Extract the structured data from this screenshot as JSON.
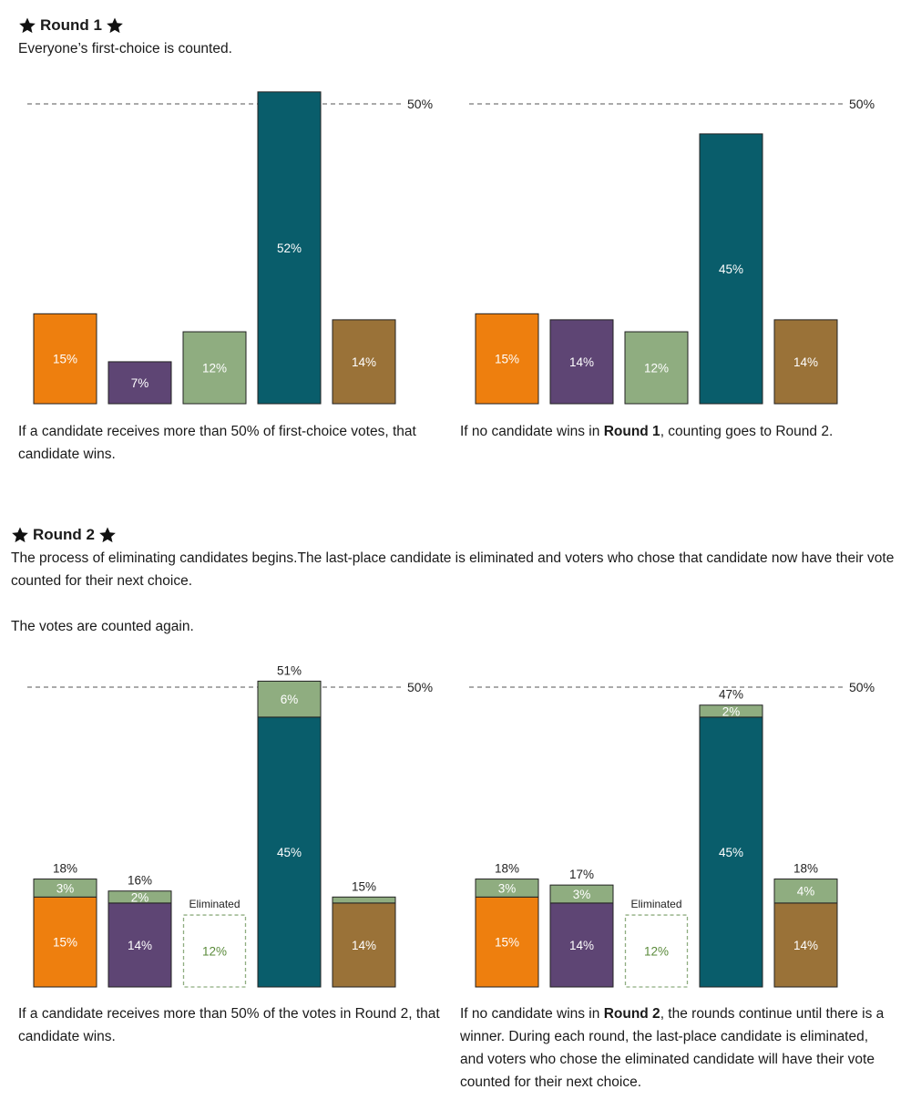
{
  "colors": {
    "orange": "#ee7f0e",
    "purple": "#5e4574",
    "green": "#8fad80",
    "teal": "#095d6b",
    "brown": "#9a7238",
    "threshold": "#777777",
    "eliminated_text": "#5a8a3a"
  },
  "round1": {
    "title": "Round 1",
    "subtitle": "Everyone’s first-choice is counted.",
    "caption_left": "If a candidate receives more than 50% of first-choice votes, that candidate wins.",
    "caption_right_pre": "If no candidate wins in ",
    "caption_right_bold": "Round 1",
    "caption_right_post": ", counting goes to Round 2."
  },
  "round2": {
    "title": "Round 2",
    "intro": "The process of eliminating candidates begins.The last-place candidate is eliminated and voters who chose that candidate now have their vote counted for their next choice.",
    "intro2": "The votes are counted again.",
    "caption_left": "If a candidate receives more than 50% of the votes in Round 2, that candidate wins.",
    "caption_right_pre": "If no candidate wins in ",
    "caption_right_bold": "Round 2",
    "caption_right_post": ", the rounds continue until there is a winner. During each round, the last-place candidate is eliminated, and voters who chose the eliminated candidate will have their vote counted for their next choice."
  },
  "chart_data": [
    {
      "id": "r1-left",
      "type": "bar",
      "stacked": false,
      "threshold": 50,
      "threshold_label": "50%",
      "ylim": [
        0,
        52
      ],
      "bars": [
        {
          "color": "orange",
          "segments": [
            {
              "value": 15,
              "label": "15%"
            }
          ]
        },
        {
          "color": "purple",
          "segments": [
            {
              "value": 7,
              "label": "7%"
            }
          ]
        },
        {
          "color": "green",
          "segments": [
            {
              "value": 12,
              "label": "12%"
            }
          ]
        },
        {
          "color": "teal",
          "segments": [
            {
              "value": 52,
              "label": "52%"
            }
          ]
        },
        {
          "color": "brown",
          "segments": [
            {
              "value": 14,
              "label": "14%"
            }
          ]
        }
      ]
    },
    {
      "id": "r1-right",
      "type": "bar",
      "stacked": false,
      "threshold": 50,
      "threshold_label": "50%",
      "ylim": [
        0,
        52
      ],
      "bars": [
        {
          "color": "orange",
          "segments": [
            {
              "value": 15,
              "label": "15%"
            }
          ]
        },
        {
          "color": "purple",
          "segments": [
            {
              "value": 14,
              "label": "14%"
            }
          ]
        },
        {
          "color": "green",
          "segments": [
            {
              "value": 12,
              "label": "12%"
            }
          ]
        },
        {
          "color": "teal",
          "segments": [
            {
              "value": 45,
              "label": "45%"
            }
          ]
        },
        {
          "color": "brown",
          "segments": [
            {
              "value": 14,
              "label": "14%"
            }
          ]
        }
      ]
    },
    {
      "id": "r2-left",
      "type": "bar",
      "stacked": true,
      "threshold": 50,
      "threshold_label": "50%",
      "ylim": [
        0,
        52
      ],
      "bars": [
        {
          "color": "orange",
          "total_label": "18%",
          "segments": [
            {
              "value": 15,
              "label": "15%"
            },
            {
              "value": 3,
              "label": "3%",
              "color": "green"
            }
          ]
        },
        {
          "color": "purple",
          "total_label": "16%",
          "segments": [
            {
              "value": 14,
              "label": "14%"
            },
            {
              "value": 2,
              "label": "2%",
              "color": "green"
            }
          ]
        },
        {
          "color": "green",
          "eliminated": true,
          "eliminated_label": "Eliminated",
          "segments": [
            {
              "value": 12,
              "label": "12%"
            }
          ]
        },
        {
          "color": "teal",
          "total_label": "51%",
          "segments": [
            {
              "value": 45,
              "label": "45%"
            },
            {
              "value": 6,
              "label": "6%",
              "color": "green"
            }
          ]
        },
        {
          "color": "brown",
          "total_label": "15%",
          "segments": [
            {
              "value": 14,
              "label": "14%"
            },
            {
              "value": 1,
              "label": "",
              "color": "green"
            }
          ]
        }
      ]
    },
    {
      "id": "r2-right",
      "type": "bar",
      "stacked": true,
      "threshold": 50,
      "threshold_label": "50%",
      "ylim": [
        0,
        52
      ],
      "bars": [
        {
          "color": "orange",
          "total_label": "18%",
          "segments": [
            {
              "value": 15,
              "label": "15%"
            },
            {
              "value": 3,
              "label": "3%",
              "color": "green"
            }
          ]
        },
        {
          "color": "purple",
          "total_label": "17%",
          "segments": [
            {
              "value": 14,
              "label": "14%"
            },
            {
              "value": 3,
              "label": "3%",
              "color": "green"
            }
          ]
        },
        {
          "color": "green",
          "eliminated": true,
          "eliminated_label": "Eliminated",
          "segments": [
            {
              "value": 12,
              "label": "12%"
            }
          ]
        },
        {
          "color": "teal",
          "total_label": "47%",
          "segments": [
            {
              "value": 45,
              "label": "45%"
            },
            {
              "value": 2,
              "label": "2%",
              "color": "green"
            }
          ]
        },
        {
          "color": "brown",
          "total_label": "18%",
          "segments": [
            {
              "value": 14,
              "label": "14%"
            },
            {
              "value": 4,
              "label": "4%",
              "color": "green"
            }
          ]
        }
      ]
    }
  ]
}
